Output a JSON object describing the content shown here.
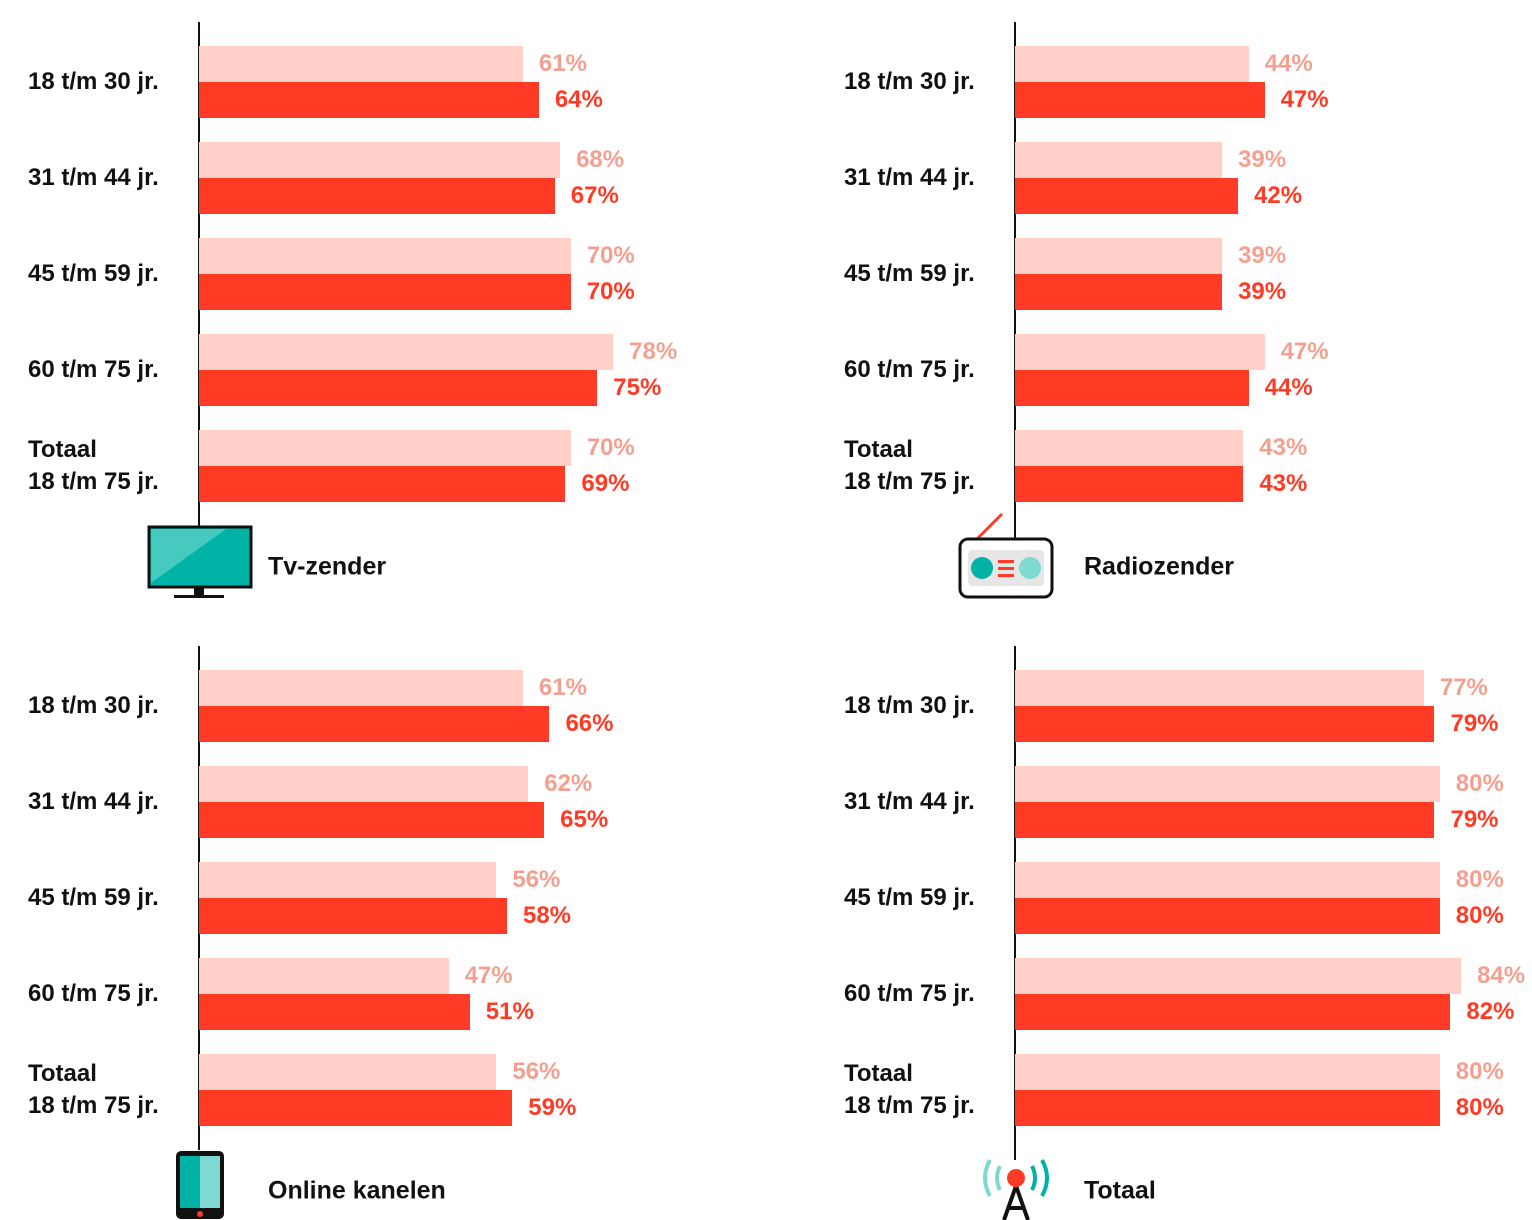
{
  "chart_data": [
    {
      "type": "bar",
      "orientation": "horizontal",
      "title": "Tv-zender",
      "categories": [
        "18 t/m 30 jr.",
        "31 t/m 44 jr.",
        "45 t/m 59 jr.",
        "60 t/m 75 jr.",
        "Totaal\n18 t/m 75 jr."
      ],
      "xlim": [
        0,
        100
      ],
      "series": [
        {
          "color": "#ffcfc8",
          "values": [
            61,
            68,
            70,
            78,
            70
          ],
          "value_labels": [
            "61%",
            "68%",
            "70%",
            "78%",
            "70%"
          ]
        },
        {
          "color": "#ff3b25",
          "values": [
            64,
            67,
            70,
            75,
            69
          ],
          "value_labels": [
            "64%",
            "67%",
            "70%",
            "75%",
            "69%"
          ]
        }
      ]
    },
    {
      "type": "bar",
      "orientation": "horizontal",
      "title": "Radiozender",
      "categories": [
        "18 t/m 30 jr.",
        "31 t/m 44 jr.",
        "45 t/m 59 jr.",
        "60 t/m 75 jr.",
        "Totaal\n18 t/m 75 jr."
      ],
      "xlim": [
        0,
        100
      ],
      "series": [
        {
          "color": "#ffcfc8",
          "values": [
            44,
            39,
            39,
            47,
            43
          ],
          "value_labels": [
            "44%",
            "39%",
            "39%",
            "47%",
            "43%"
          ]
        },
        {
          "color": "#ff3b25",
          "values": [
            47,
            42,
            39,
            44,
            43
          ],
          "value_labels": [
            "47%",
            "42%",
            "39%",
            "44%",
            "43%"
          ]
        }
      ]
    },
    {
      "type": "bar",
      "orientation": "horizontal",
      "title": "Online kanelen",
      "categories": [
        "18 t/m 30 jr.",
        "31 t/m 44 jr.",
        "45 t/m 59 jr.",
        "60 t/m 75 jr.",
        "Totaal\n18 t/m 75 jr."
      ],
      "xlim": [
        0,
        100
      ],
      "series": [
        {
          "color": "#ffcfc8",
          "values": [
            61,
            62,
            56,
            47,
            56
          ],
          "value_labels": [
            "61%",
            "62%",
            "56%",
            "47%",
            "56%"
          ]
        },
        {
          "color": "#ff3b25",
          "values": [
            66,
            65,
            58,
            51,
            59
          ],
          "value_labels": [
            "66%",
            "65%",
            "58%",
            "51%",
            "59%"
          ]
        }
      ]
    },
    {
      "type": "bar",
      "orientation": "horizontal",
      "title": "Totaal",
      "categories": [
        "18 t/m 30 jr.",
        "31 t/m 44 jr.",
        "45 t/m 59 jr.",
        "60 t/m 75 jr.",
        "Totaal\n18 t/m 75 jr."
      ],
      "xlim": [
        0,
        100
      ],
      "series": [
        {
          "color": "#ffcfc8",
          "values": [
            77,
            80,
            80,
            84,
            80
          ],
          "value_labels": [
            "77%",
            "80%",
            "80%",
            "84%",
            "80%"
          ]
        },
        {
          "color": "#ff3b25",
          "values": [
            79,
            79,
            80,
            82,
            80
          ],
          "value_labels": [
            "79%",
            "79%",
            "80%",
            "82%",
            "80%"
          ]
        }
      ]
    }
  ]
}
